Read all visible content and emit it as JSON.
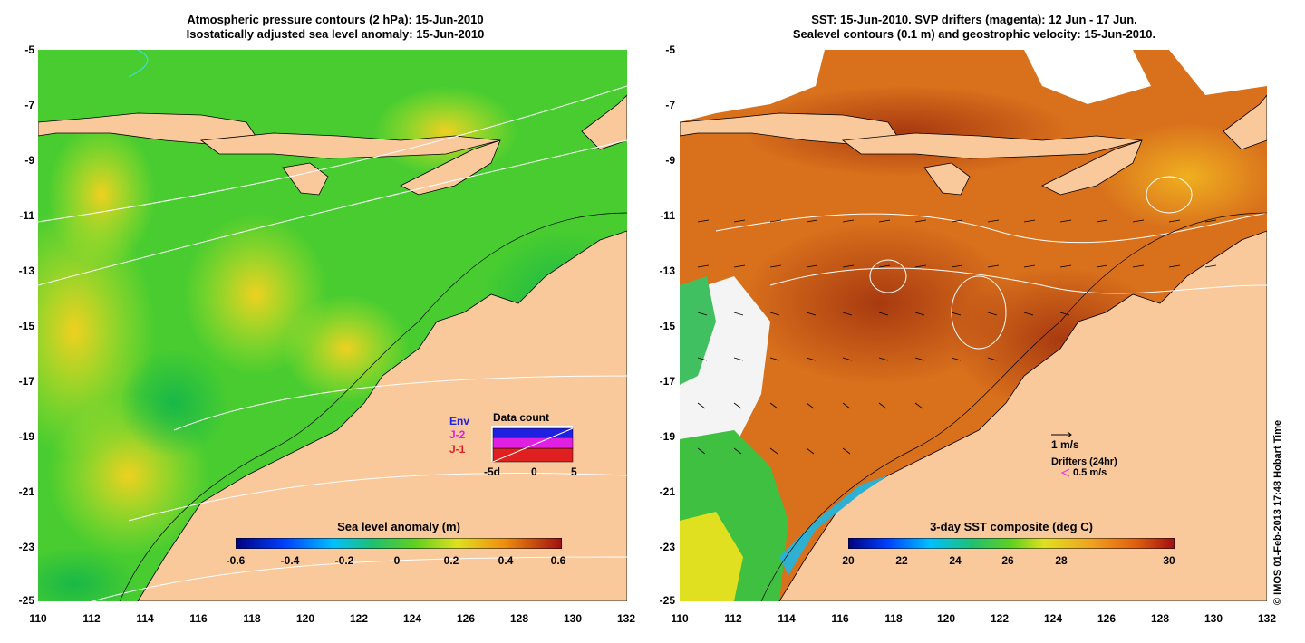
{
  "left_panel": {
    "title_line1": "Atmospheric pressure contours (2 hPa): 15-Jun-2010",
    "title_line2": "Isostatically adjusted sea level anomaly: 15-Jun-2010",
    "y_ticks": [
      "-5",
      "-7",
      "-9",
      "-11",
      "-13",
      "-15",
      "-17",
      "-19",
      "-21",
      "-23",
      "-25"
    ],
    "x_ticks": [
      "110",
      "112",
      "114",
      "116",
      "118",
      "120",
      "122",
      "124",
      "126",
      "128",
      "130",
      "132"
    ],
    "colorbar": {
      "label": "Sea level anomaly (m)",
      "ticks": [
        "-0.6",
        "-0.4",
        "-0.2",
        "0",
        "0.2",
        "0.4",
        "0.6"
      ]
    },
    "data_count": {
      "title": "Data count",
      "legend": [
        {
          "label": "Env",
          "color": "#2020e0"
        },
        {
          "label": "J-2",
          "color": "#e020e0"
        },
        {
          "label": "J-1",
          "color": "#e02020"
        }
      ],
      "x_ticks": [
        "-5d",
        "0",
        "5"
      ]
    }
  },
  "right_panel": {
    "title_line1": "SST: 15-Jun-2010. SVP drifters (magenta): 12 Jun - 17 Jun.",
    "title_line2": "Sealevel contours (0.1 m) and geostrophic velocity: 15-Jun-2010.",
    "y_ticks": [
      "-5",
      "-7",
      "-9",
      "-11",
      "-13",
      "-15",
      "-17",
      "-19",
      "-21",
      "-23",
      "-25"
    ],
    "x_ticks": [
      "110",
      "112",
      "114",
      "116",
      "118",
      "120",
      "122",
      "124",
      "126",
      "128",
      "130",
      "132"
    ],
    "colorbar": {
      "label": "3-day SST composite (deg C)",
      "ticks": [
        "20",
        "22",
        "24",
        "26",
        "28",
        "30"
      ]
    },
    "legend": {
      "velocity_scale": "1 m/s",
      "drifters_title": "Drifters (24hr)",
      "drifters_scale": "0.5 m/s"
    }
  },
  "credit": "© IMOS 01-Feb-2013 17:48 Hobart Time",
  "colors": {
    "land": "#f9c89b",
    "ocean_green": "#3cc83c",
    "ocean_yellow": "#c8e628",
    "sst_orange": "#e0781c",
    "sst_dark": "#a83a10"
  }
}
